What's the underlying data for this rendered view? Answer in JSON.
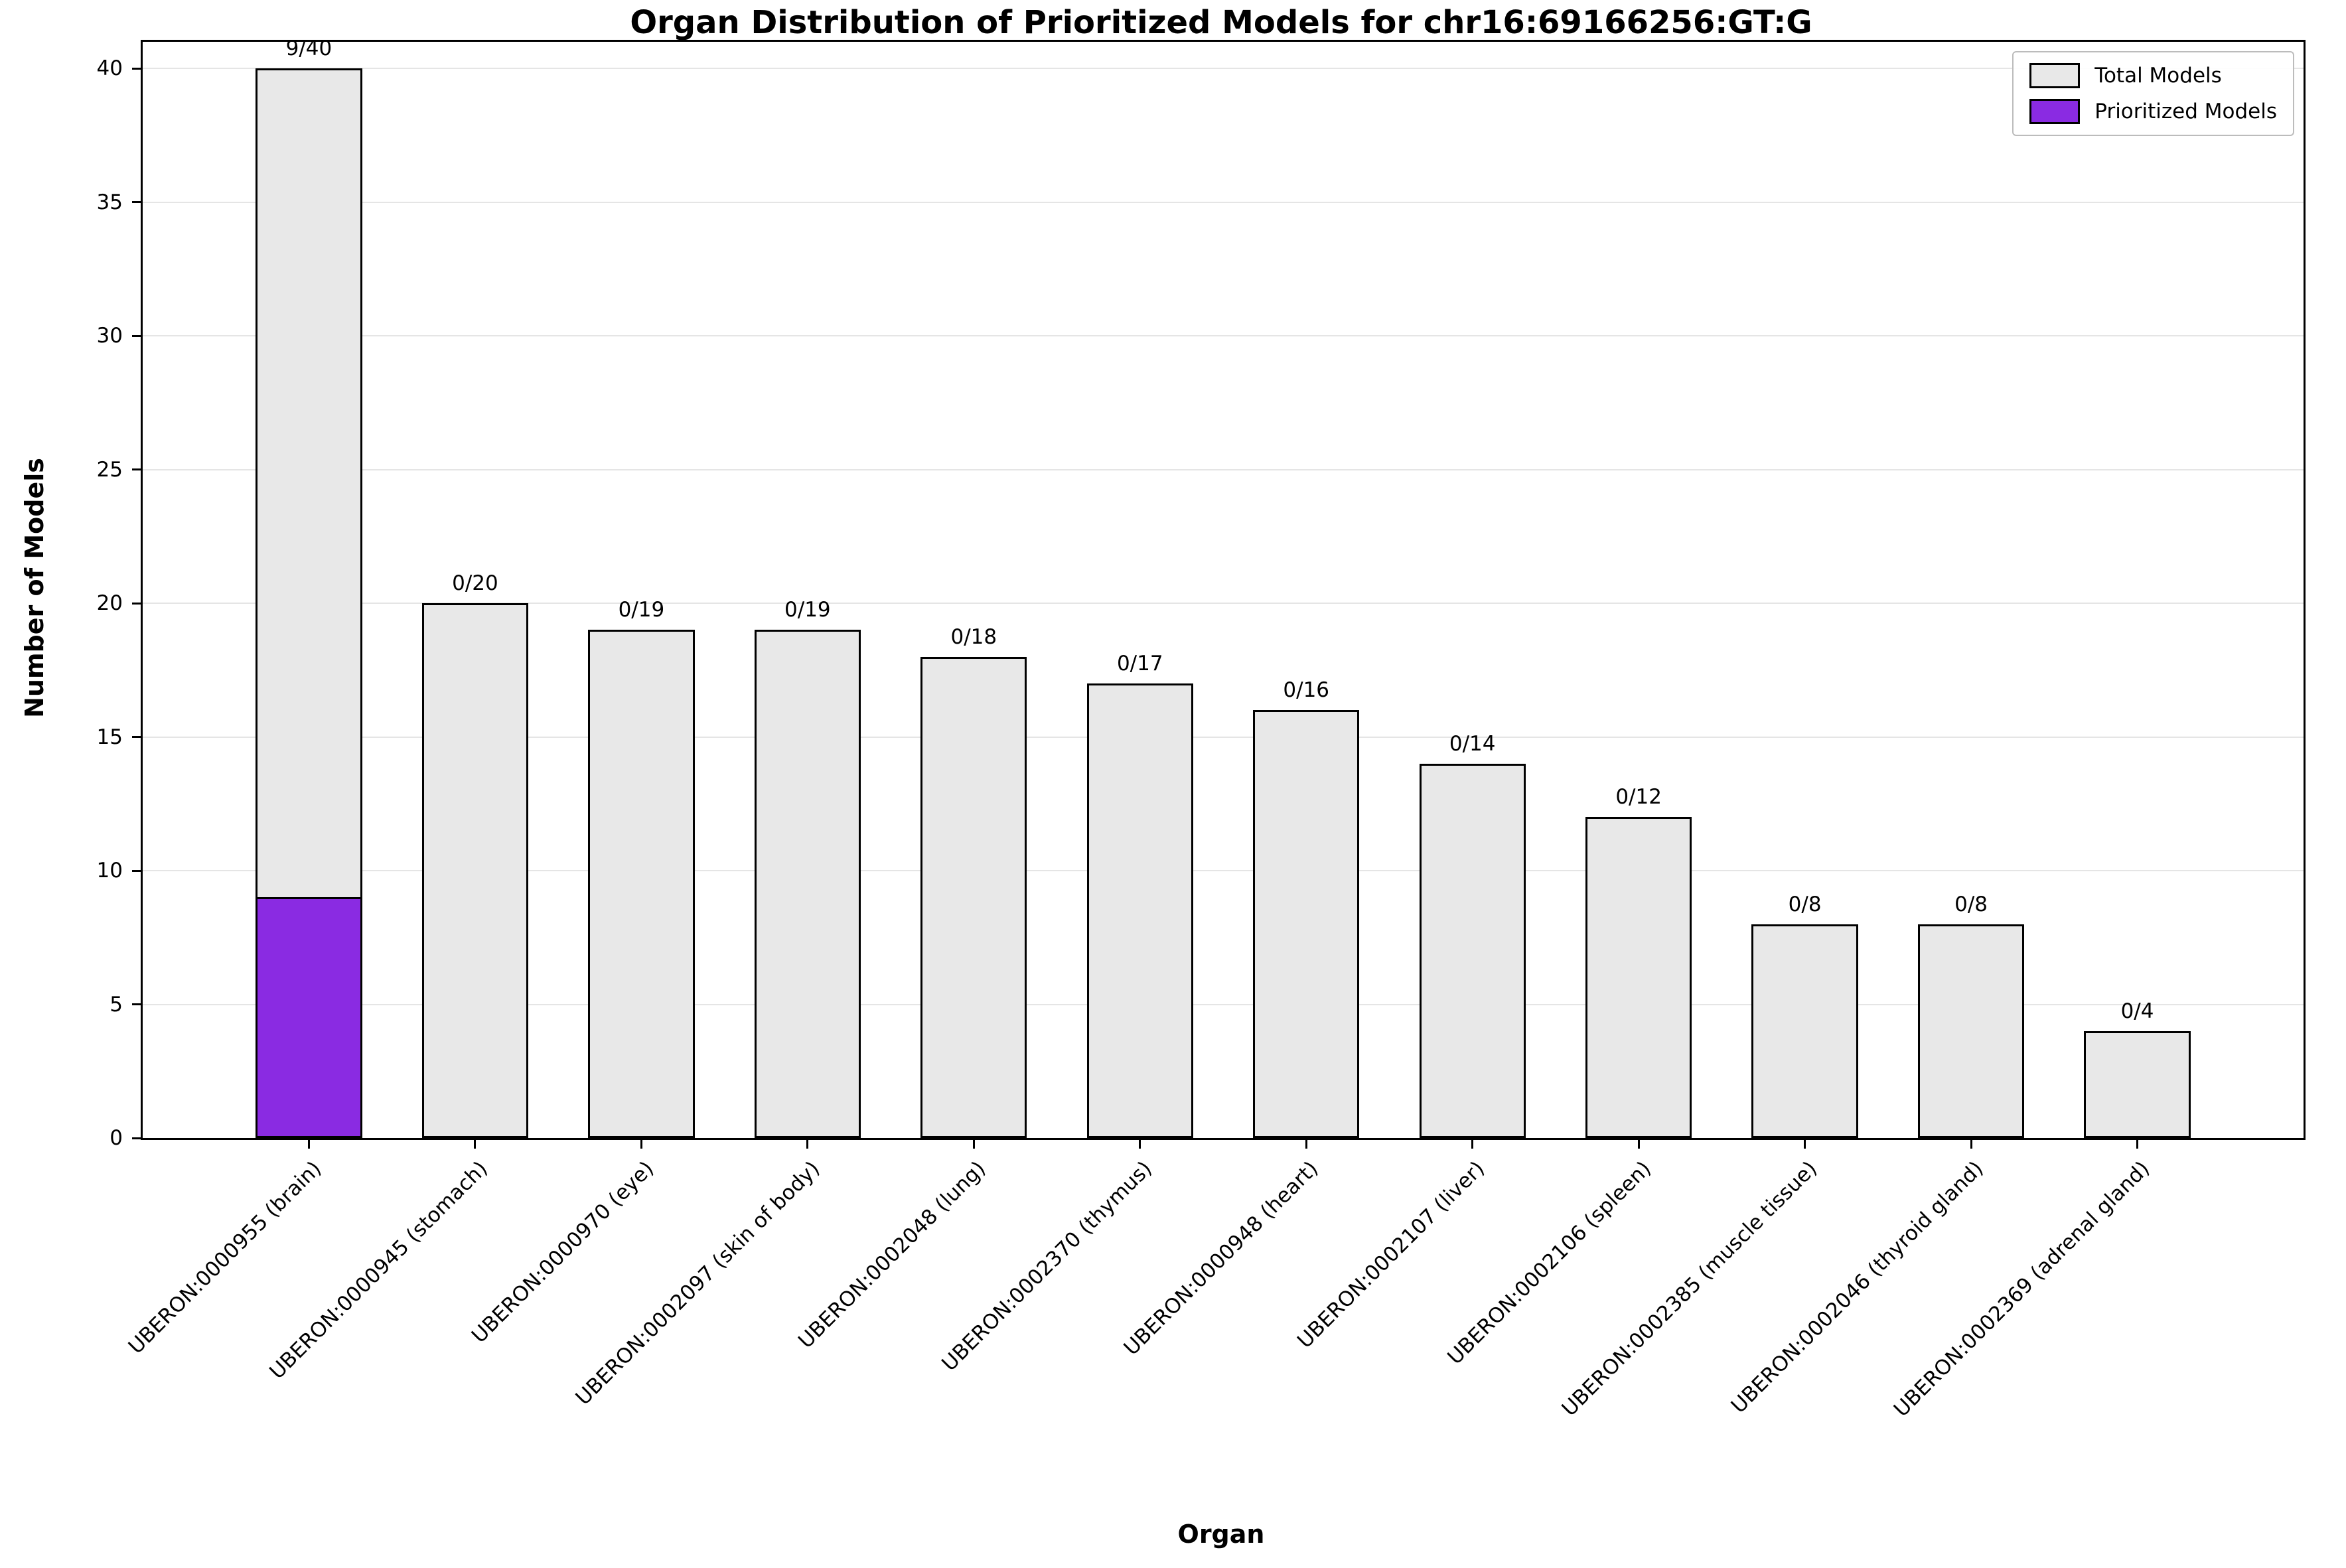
{
  "page": {
    "background": "#ffffff"
  },
  "chart_data": {
    "type": "bar",
    "title": "Organ Distribution of Prioritized Models for chr16:69166256:GT:G",
    "xlabel": "Organ",
    "ylabel": "Number of Models",
    "ylim": [
      0,
      41
    ],
    "yticks": [
      0,
      5,
      10,
      15,
      20,
      25,
      30,
      35,
      40
    ],
    "grid": true,
    "legend_position": "upper right",
    "categories": [
      "UBERON:0000955 (brain)",
      "UBERON:0000945 (stomach)",
      "UBERON:0000970 (eye)",
      "UBERON:0002097 (skin of body)",
      "UBERON:0002048 (lung)",
      "UBERON:0002370 (thymus)",
      "UBERON:0000948 (heart)",
      "UBERON:0002107 (liver)",
      "UBERON:0002106 (spleen)",
      "UBERON:0002385 (muscle tissue)",
      "UBERON:0002046 (thyroid gland)",
      "UBERON:0002369 (adrenal gland)"
    ],
    "series": [
      {
        "name": "Total Models",
        "color": "#e8e8e8",
        "edge_color": "#000000",
        "values": [
          40,
          20,
          19,
          19,
          18,
          17,
          16,
          14,
          12,
          8,
          8,
          4
        ]
      },
      {
        "name": "Prioritized Models",
        "color": "#8a2be2",
        "edge_color": "#000000",
        "values": [
          9,
          0,
          0,
          0,
          0,
          0,
          0,
          0,
          0,
          0,
          0,
          0
        ]
      }
    ],
    "bar_labels": [
      "9/40",
      "0/20",
      "0/19",
      "0/19",
      "0/18",
      "0/17",
      "0/16",
      "0/14",
      "0/12",
      "0/8",
      "0/8",
      "0/4"
    ]
  }
}
